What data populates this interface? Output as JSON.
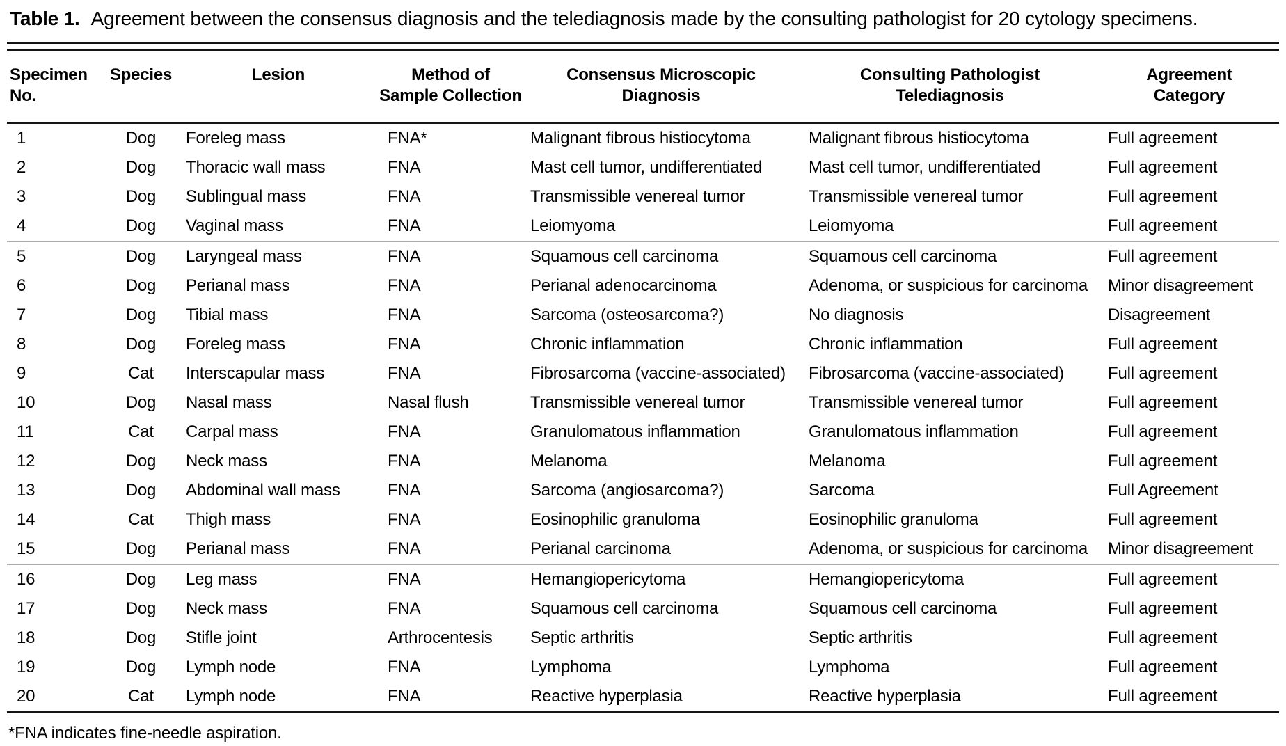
{
  "title": {
    "label": "Table 1.",
    "text": "Agreement between the consensus diagnosis and the telediagnosis made by the consulting pathologist for 20 cytology specimens."
  },
  "table": {
    "columns": [
      {
        "line1": "Specimen",
        "line2": "No."
      },
      {
        "line1": "Species",
        "line2": ""
      },
      {
        "line1": "Lesion",
        "line2": ""
      },
      {
        "line1": "Method of",
        "line2": "Sample Collection"
      },
      {
        "line1": "Consensus Microscopic",
        "line2": "Diagnosis"
      },
      {
        "line1": "Consulting Pathologist",
        "line2": "Telediagnosis"
      },
      {
        "line1": "Agreement",
        "line2": "Category"
      }
    ],
    "separator_after_rows": [
      4,
      15
    ],
    "rows": [
      [
        "1",
        "Dog",
        "Foreleg mass",
        "FNA*",
        "Malignant fibrous histiocytoma",
        "Malignant fibrous histiocytoma",
        "Full agreement"
      ],
      [
        "2",
        "Dog",
        "Thoracic wall mass",
        "FNA",
        "Mast cell tumor, undifferentiated",
        "Mast cell tumor, undifferentiated",
        "Full agreement"
      ],
      [
        "3",
        "Dog",
        "Sublingual mass",
        "FNA",
        "Transmissible venereal tumor",
        "Transmissible venereal tumor",
        "Full agreement"
      ],
      [
        "4",
        "Dog",
        "Vaginal mass",
        "FNA",
        "Leiomyoma",
        "Leiomyoma",
        "Full agreement"
      ],
      [
        "5",
        "Dog",
        "Laryngeal mass",
        "FNA",
        "Squamous cell carcinoma",
        "Squamous cell carcinoma",
        "Full agreement"
      ],
      [
        "6",
        "Dog",
        "Perianal mass",
        "FNA",
        "Perianal adenocarcinoma",
        "Adenoma, or suspicious for carcinoma",
        "Minor disagreement"
      ],
      [
        "7",
        "Dog",
        "Tibial mass",
        "FNA",
        "Sarcoma (osteosarcoma?)",
        "No diagnosis",
        "Disagreement"
      ],
      [
        "8",
        "Dog",
        "Foreleg mass",
        "FNA",
        "Chronic inflammation",
        "Chronic inflammation",
        "Full agreement"
      ],
      [
        "9",
        "Cat",
        "Interscapular mass",
        "FNA",
        "Fibrosarcoma (vaccine-associated)",
        "Fibrosarcoma (vaccine-associated)",
        "Full agreement"
      ],
      [
        "10",
        "Dog",
        "Nasal mass",
        "Nasal flush",
        "Transmissible venereal tumor",
        "Transmissible venereal tumor",
        "Full agreement"
      ],
      [
        "11",
        "Cat",
        "Carpal mass",
        "FNA",
        "Granulomatous inflammation",
        "Granulomatous inflammation",
        "Full agreement"
      ],
      [
        "12",
        "Dog",
        "Neck mass",
        "FNA",
        "Melanoma",
        "Melanoma",
        "Full agreement"
      ],
      [
        "13",
        "Dog",
        "Abdominal wall mass",
        "FNA",
        "Sarcoma (angiosarcoma?)",
        "Sarcoma",
        "Full Agreement"
      ],
      [
        "14",
        "Cat",
        "Thigh mass",
        "FNA",
        "Eosinophilic granuloma",
        "Eosinophilic granuloma",
        "Full agreement"
      ],
      [
        "15",
        "Dog",
        "Perianal mass",
        "FNA",
        "Perianal carcinoma",
        "Adenoma, or suspicious for carcinoma",
        "Minor disagreement"
      ],
      [
        "16",
        "Dog",
        "Leg mass",
        "FNA",
        "Hemangiopericytoma",
        "Hemangiopericytoma",
        "Full agreement"
      ],
      [
        "17",
        "Dog",
        "Neck mass",
        "FNA",
        "Squamous cell carcinoma",
        "Squamous cell carcinoma",
        "Full agreement"
      ],
      [
        "18",
        "Dog",
        "Stifle joint",
        "Arthrocentesis",
        "Septic arthritis",
        "Septic arthritis",
        "Full agreement"
      ],
      [
        "19",
        "Dog",
        "Lymph node",
        "FNA",
        "Lymphoma",
        "Lymphoma",
        "Full agreement"
      ],
      [
        "20",
        "Cat",
        "Lymph node",
        "FNA",
        "Reactive hyperplasia",
        "Reactive hyperplasia",
        "Full agreement"
      ]
    ]
  },
  "footnote": "*FNA indicates fine-needle aspiration.",
  "colors": {
    "text": "#000000",
    "background": "#ffffff",
    "rule_dark": "#141414",
    "rule_light": "#adadad"
  }
}
